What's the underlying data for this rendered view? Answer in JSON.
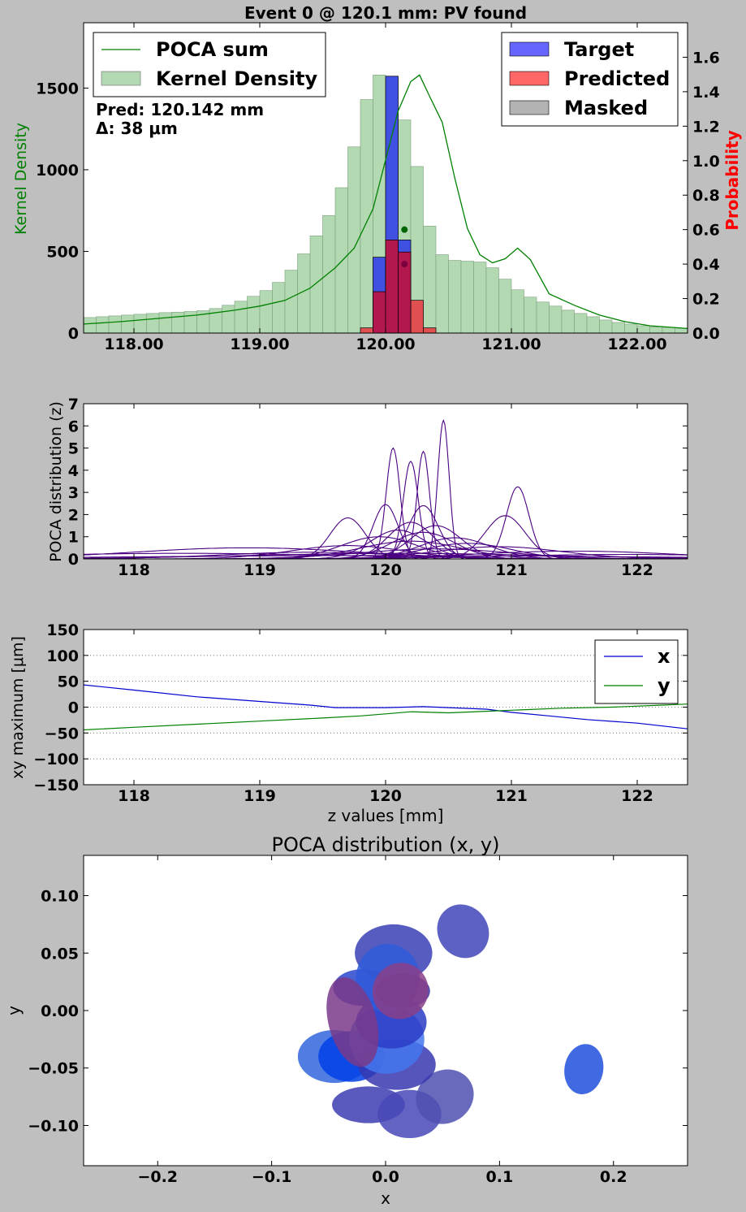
{
  "figure": {
    "background": "#bfbfbf"
  },
  "chart_data": [
    {
      "type": "bar",
      "title": "Event 0 @ 120.1 mm: PV found",
      "ylabel": "Kernel Density",
      "ylabel_right": "Probability",
      "xlim": [
        117.6,
        122.4
      ],
      "ylim": [
        0,
        1900
      ],
      "ylim_right": [
        0,
        1.8
      ],
      "x_ticks": [
        118,
        119,
        120,
        121,
        122
      ],
      "x_tick_labels": [
        "118.00",
        "119.00",
        "120.00",
        "121.00",
        "122.00"
      ],
      "y_ticks": [
        0,
        500,
        1000,
        1500
      ],
      "y_tick_labels": [
        "0",
        "500",
        "1000",
        "1500"
      ],
      "y_right_ticks": [
        0,
        0.2,
        0.4,
        0.6,
        0.8,
        1.0,
        1.2,
        1.4,
        1.6
      ],
      "y_right_tick_labels": [
        "0.0",
        "0.2",
        "0.4",
        "0.6",
        "0.8",
        "1.0",
        "1.2",
        "1.4",
        "1.6"
      ],
      "annotation_lines": [
        "Pred: 120.142 mm",
        "Δ: 38 μm"
      ],
      "legend_left": [
        "POCA sum",
        "Kernel Density"
      ],
      "legend_right": [
        "Target",
        "Predicted",
        "Masked"
      ],
      "colors": {
        "kernel": "#b2d9b2",
        "poca": "#008000",
        "target": "#0000ff",
        "predicted": "#ff0000",
        "masked": "#808080",
        "overlap": "#b2184d"
      },
      "kernel_density": {
        "bin_start": 117.6,
        "bin_width": 0.1,
        "values": [
          95,
          100,
          105,
          110,
          115,
          120,
          125,
          128,
          132,
          137,
          150,
          170,
          195,
          225,
          260,
          310,
          385,
          485,
          595,
          720,
          890,
          1140,
          1430,
          1580,
          1550,
          1305,
          1020,
          655,
          480,
          445,
          440,
          435,
          400,
          330,
          265,
          220,
          190,
          165,
          140,
          120,
          100,
          80,
          65,
          55,
          45,
          38,
          35,
          30
        ]
      },
      "poca_sum": {
        "z": [
          117.6,
          117.9,
          118.2,
          118.5,
          118.8,
          119.0,
          119.2,
          119.4,
          119.6,
          119.75,
          119.9,
          120.0,
          120.1,
          120.2,
          120.27,
          120.35,
          120.45,
          120.55,
          120.65,
          120.75,
          120.85,
          120.95,
          121.05,
          121.15,
          121.3,
          121.5,
          121.7,
          121.9,
          122.1,
          122.4
        ],
        "density": [
          55,
          70,
          90,
          110,
          140,
          165,
          200,
          275,
          400,
          520,
          760,
          1060,
          1360,
          1540,
          1580,
          1450,
          1290,
          950,
          640,
          480,
          430,
          455,
          520,
          450,
          240,
          170,
          110,
          70,
          45,
          28
        ]
      },
      "target": {
        "bin_start": 119.9,
        "bin_width": 0.1,
        "values": [
          0.44,
          1.49,
          0.54,
          0.0
        ]
      },
      "predicted": {
        "bin_start": 119.8,
        "bin_width": 0.1,
        "values": [
          0.03,
          0.24,
          0.54,
          0.47,
          0.19,
          0.03,
          0.0
        ]
      },
      "target_marker": {
        "z": 120.15,
        "prob": 0.6
      },
      "predicted_marker": {
        "z": 120.15,
        "prob": 0.4
      }
    },
    {
      "type": "line",
      "ylabel": "POCA distribution (z)",
      "xlim": [
        117.6,
        122.4
      ],
      "ylim": [
        0,
        7
      ],
      "x_ticks": [
        118,
        119,
        120,
        121,
        122
      ],
      "x_tick_labels": [
        "118",
        "119",
        "120",
        "121",
        "122"
      ],
      "y_ticks": [
        0,
        1,
        2,
        3,
        4,
        5,
        6,
        7
      ],
      "y_tick_labels": [
        "0",
        "1",
        "2",
        "3",
        "4",
        "5",
        "6",
        "7"
      ],
      "line_color": "#4b0082",
      "peaks": [
        [
          120.46,
          6.25,
          0.045
        ],
        [
          120.06,
          5.0,
          0.055
        ],
        [
          120.3,
          4.85,
          0.05
        ],
        [
          120.2,
          4.4,
          0.06
        ],
        [
          121.05,
          3.25,
          0.09
        ],
        [
          120.3,
          2.4,
          0.12
        ],
        [
          120.0,
          2.45,
          0.1
        ],
        [
          120.95,
          1.95,
          0.16
        ],
        [
          119.7,
          1.85,
          0.14
        ],
        [
          120.2,
          1.65,
          0.18
        ],
        [
          120.4,
          1.5,
          0.2
        ],
        [
          120.1,
          1.3,
          0.22
        ],
        [
          120.3,
          1.2,
          0.25
        ],
        [
          119.95,
          1.0,
          0.3
        ],
        [
          120.55,
          0.95,
          0.28
        ],
        [
          120.2,
          0.8,
          0.4
        ],
        [
          120.65,
          0.7,
          0.35
        ],
        [
          119.7,
          0.6,
          0.45
        ],
        [
          120.9,
          0.55,
          0.5
        ],
        [
          118.9,
          0.5,
          0.9
        ],
        [
          120.4,
          0.45,
          0.6
        ],
        [
          121.5,
          0.35,
          0.8
        ],
        [
          119.4,
          0.3,
          0.7
        ],
        [
          120.1,
          0.25,
          1.2
        ],
        [
          121.9,
          0.2,
          1.0
        ],
        [
          118.4,
          0.25,
          1.3
        ],
        [
          120.0,
          0.15,
          2.0
        ]
      ]
    },
    {
      "type": "line",
      "xlabel": "z values [mm]",
      "ylabel": "xy maximum [μm]",
      "xlim": [
        117.6,
        122.4
      ],
      "ylim": [
        -150,
        150
      ],
      "x_ticks": [
        118,
        119,
        120,
        121,
        122
      ],
      "x_tick_labels": [
        "118",
        "119",
        "120",
        "121",
        "122"
      ],
      "y_ticks": [
        -150,
        -100,
        -50,
        0,
        50,
        100,
        150
      ],
      "y_tick_labels": [
        "−150",
        "−100",
        "−50",
        "0",
        "50",
        "100",
        "150"
      ],
      "grid": "horizontal dotted",
      "legend_placement": "top-right",
      "series": [
        {
          "name": "x",
          "color": "#0000cd",
          "z": [
            117.6,
            118.0,
            118.5,
            119.0,
            119.4,
            119.6,
            119.8,
            120.0,
            120.3,
            120.5,
            120.8,
            121.0,
            121.3,
            121.6,
            122.0,
            122.4
          ],
          "values": [
            43,
            33,
            20,
            11,
            4,
            -1,
            -1,
            -1,
            1,
            -1,
            -4,
            -10,
            -17,
            -24,
            -31,
            -42
          ]
        },
        {
          "name": "y",
          "color": "#008000",
          "z": [
            117.6,
            118.0,
            118.5,
            119.0,
            119.5,
            119.8,
            120.0,
            120.2,
            120.5,
            120.8,
            121.0,
            121.4,
            121.8,
            122.2,
            122.4
          ],
          "values": [
            -44,
            -39,
            -33,
            -27,
            -21,
            -17,
            -13,
            -9,
            -11,
            -8,
            -6,
            -2,
            0,
            4,
            6
          ]
        }
      ]
    },
    {
      "type": "scatter",
      "title": "POCA distribution (x, y)",
      "xlabel": "x",
      "ylabel": "y",
      "xlim": [
        -0.265,
        0.265
      ],
      "ylim": [
        -0.135,
        0.135
      ],
      "x_ticks": [
        -0.2,
        -0.1,
        0.0,
        0.1,
        0.2
      ],
      "x_tick_labels": [
        "−0.2",
        "−0.1",
        "0.0",
        "0.1",
        "0.2"
      ],
      "y_ticks": [
        -0.1,
        -0.05,
        0.0,
        0.05,
        0.1
      ],
      "y_tick_labels": [
        "−0.10",
        "−0.05",
        "0.00",
        "0.05",
        "0.10"
      ],
      "ellipses": [
        {
          "x": -0.015,
          "y": -0.082,
          "rx": 0.032,
          "ry": 0.016,
          "rot": 0,
          "color": "#3d3db3"
        },
        {
          "x": 0.021,
          "y": -0.09,
          "rx": 0.028,
          "ry": 0.021,
          "rot": 0,
          "color": "#4848b8"
        },
        {
          "x": 0.052,
          "y": -0.075,
          "rx": 0.026,
          "ry": 0.023,
          "rot": 30,
          "color": "#5050b0"
        },
        {
          "x": -0.045,
          "y": -0.04,
          "rx": 0.032,
          "ry": 0.023,
          "rot": 0,
          "color": "#3366dd"
        },
        {
          "x": -0.03,
          "y": -0.04,
          "rx": 0.029,
          "ry": 0.022,
          "rot": 0,
          "color": "#0040e6"
        },
        {
          "x": 0.01,
          "y": -0.047,
          "rx": 0.034,
          "ry": 0.022,
          "rot": 0,
          "color": "#3737b0"
        },
        {
          "x": 0.001,
          "y": -0.025,
          "rx": 0.033,
          "ry": 0.03,
          "rot": 0,
          "color": "#4477ee"
        },
        {
          "x": 0.005,
          "y": -0.01,
          "rx": 0.031,
          "ry": 0.023,
          "rot": 0,
          "color": "#2c3cc6"
        },
        {
          "x": -0.02,
          "y": 0.02,
          "rx": 0.026,
          "ry": 0.016,
          "rot": 0,
          "color": "#2a46cc"
        },
        {
          "x": 0.007,
          "y": 0.05,
          "rx": 0.034,
          "ry": 0.025,
          "rot": 0,
          "color": "#3a40b5"
        },
        {
          "x": 0.002,
          "y": 0.028,
          "rx": 0.028,
          "ry": 0.03,
          "rot": 0,
          "color": "#2f5bd9"
        },
        {
          "x": 0.015,
          "y": 0.017,
          "rx": 0.024,
          "ry": 0.015,
          "rot": 0,
          "color": "#3030a8"
        },
        {
          "x": -0.029,
          "y": -0.01,
          "rx": 0.021,
          "ry": 0.04,
          "rot": 15,
          "color": "#7a3a8a"
        },
        {
          "x": 0.013,
          "y": 0.017,
          "rx": 0.025,
          "ry": 0.024,
          "rot": 50,
          "color": "#8a3f88"
        },
        {
          "x": 0.068,
          "y": 0.069,
          "rx": 0.022,
          "ry": 0.024,
          "rot": 35,
          "color": "#3f45b8"
        },
        {
          "x": 0.174,
          "y": -0.051,
          "rx": 0.017,
          "ry": 0.022,
          "rot": -10,
          "color": "#2050dd"
        }
      ]
    }
  ],
  "legend_positions_note": ""
}
